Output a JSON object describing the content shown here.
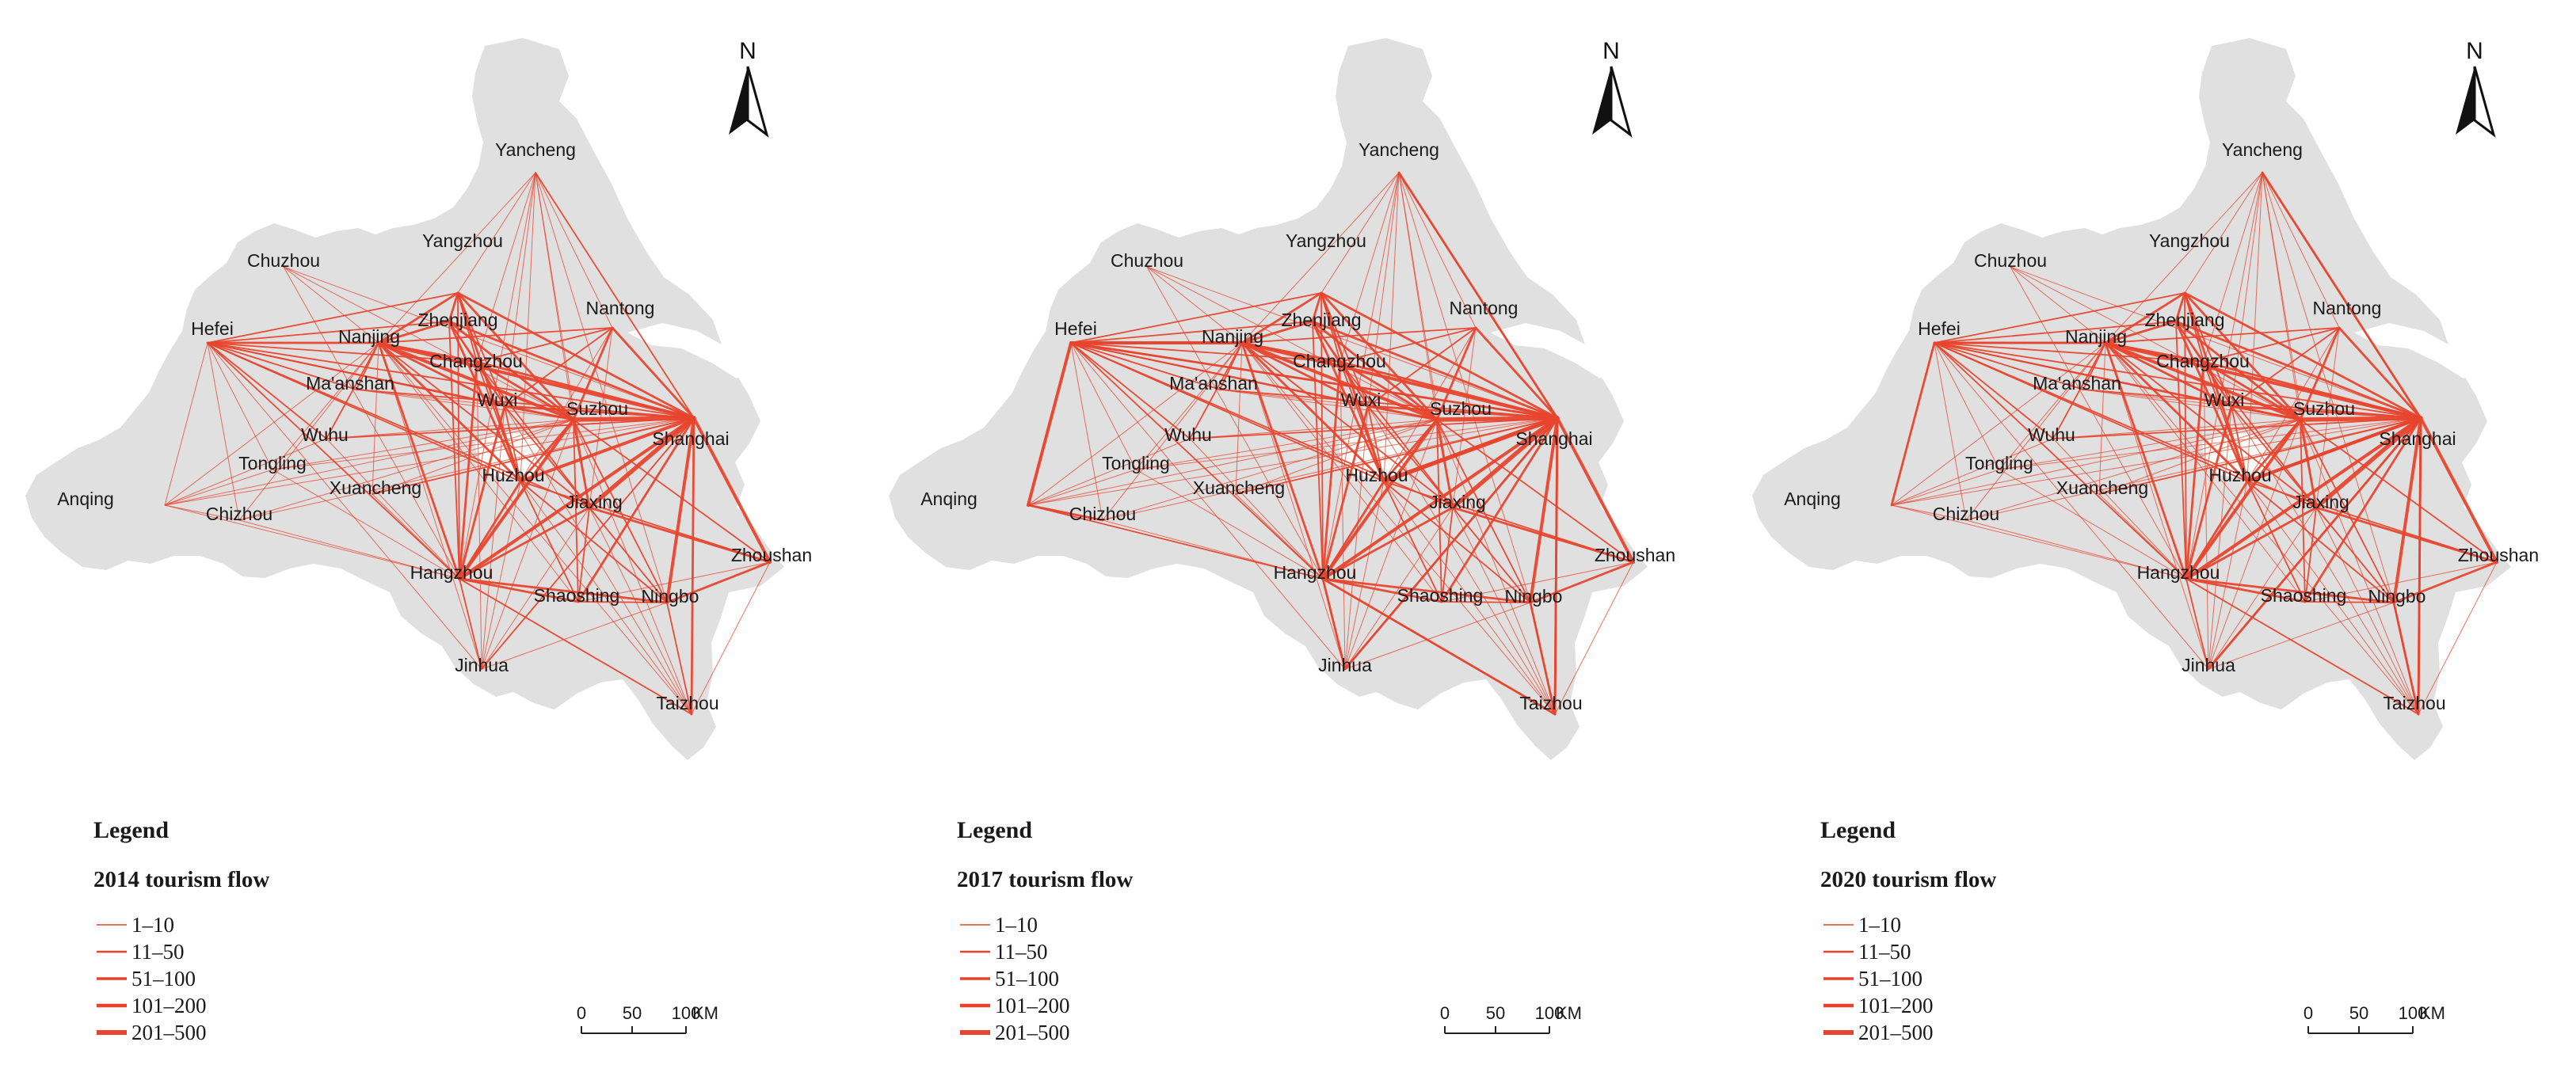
{
  "flow_color": "#e8442d",
  "land_color": "#e0e0e0",
  "panels": [
    {
      "year": "2014",
      "legend_title": "Legend",
      "legend_subtitle": "2014 tourism flow",
      "legend_items": [
        "1–10",
        "11–50",
        "51–100",
        "101–200",
        "201–500"
      ],
      "north_label": "N",
      "scale": {
        "labels": [
          "0",
          "50",
          "100"
        ],
        "unit": "KM"
      },
      "cities": [
        {
          "name": "Yancheng"
        },
        {
          "name": "Yangzhou"
        },
        {
          "name": "Chuzhou"
        },
        {
          "name": "Nantong"
        },
        {
          "name": "Hefei"
        },
        {
          "name": "Nanjing"
        },
        {
          "name": "Zhenjiang"
        },
        {
          "name": "Changzhou"
        },
        {
          "name": "Ma'anshan"
        },
        {
          "name": "Wuxi"
        },
        {
          "name": "Suzhou"
        },
        {
          "name": "Shanghai"
        },
        {
          "name": "Wuhu"
        },
        {
          "name": "Tongling"
        },
        {
          "name": "Xuancheng"
        },
        {
          "name": "Huzhou"
        },
        {
          "name": "Anqing"
        },
        {
          "name": "Chizhou"
        },
        {
          "name": "Jiaxing"
        },
        {
          "name": "Zhoushan"
        },
        {
          "name": "Hangzhou"
        },
        {
          "name": "Shaoshing"
        },
        {
          "name": "Ningbo"
        },
        {
          "name": "Jinhua"
        },
        {
          "name": "Taizhou"
        }
      ]
    },
    {
      "year": "2017",
      "legend_title": "Legend",
      "legend_subtitle": "2017 tourism flow",
      "legend_items": [
        "1–10",
        "11–50",
        "51–100",
        "101–200",
        "201–500"
      ],
      "north_label": "N",
      "scale": {
        "labels": [
          "0",
          "50",
          "100"
        ],
        "unit": "KM"
      },
      "cities": [
        {
          "name": "Yancheng"
        },
        {
          "name": "Yangzhou"
        },
        {
          "name": "Chuzhou"
        },
        {
          "name": "Nantong"
        },
        {
          "name": "Hefei"
        },
        {
          "name": "Nanjing"
        },
        {
          "name": "Zhenjiang"
        },
        {
          "name": "Changzhou"
        },
        {
          "name": "Ma'anshan"
        },
        {
          "name": "Wuxi"
        },
        {
          "name": "Suzhou"
        },
        {
          "name": "Shanghai"
        },
        {
          "name": "Wuhu"
        },
        {
          "name": "Tongling"
        },
        {
          "name": "Xuancheng"
        },
        {
          "name": "Huzhou"
        },
        {
          "name": "Anqing"
        },
        {
          "name": "Chizhou"
        },
        {
          "name": "Jiaxing"
        },
        {
          "name": "Zhoushan"
        },
        {
          "name": "Hangzhou"
        },
        {
          "name": "Shaoshing"
        },
        {
          "name": "Ningbo"
        },
        {
          "name": "Jinhua"
        },
        {
          "name": "Taizhou"
        }
      ]
    },
    {
      "year": "2020",
      "legend_title": "Legend",
      "legend_subtitle": "2020 tourism flow",
      "legend_items": [
        "1–10",
        "11–50",
        "51–100",
        "101–200",
        "201–500"
      ],
      "north_label": "N",
      "scale": {
        "labels": [
          "0",
          "50",
          "100"
        ],
        "unit": "KM"
      },
      "cities": [
        {
          "name": "Yancheng"
        },
        {
          "name": "Yangzhou"
        },
        {
          "name": "Chuzhou"
        },
        {
          "name": "Nantong"
        },
        {
          "name": "Hefei"
        },
        {
          "name": "Nanjing"
        },
        {
          "name": "Zhenjiang"
        },
        {
          "name": "Changzhou"
        },
        {
          "name": "Ma'anshan"
        },
        {
          "name": "Wuxi"
        },
        {
          "name": "Suzhou"
        },
        {
          "name": "Shanghai"
        },
        {
          "name": "Wuhu"
        },
        {
          "name": "Tongling"
        },
        {
          "name": "Xuancheng"
        },
        {
          "name": "Huzhou"
        },
        {
          "name": "Anqing"
        },
        {
          "name": "Chizhou"
        },
        {
          "name": "Jiaxing"
        },
        {
          "name": "Zhoushan"
        },
        {
          "name": "Hangzhou"
        },
        {
          "name": "Shaoshing"
        },
        {
          "name": "Ningbo"
        },
        {
          "name": "Jinhua"
        },
        {
          "name": "Taizhou"
        }
      ]
    }
  ]
}
